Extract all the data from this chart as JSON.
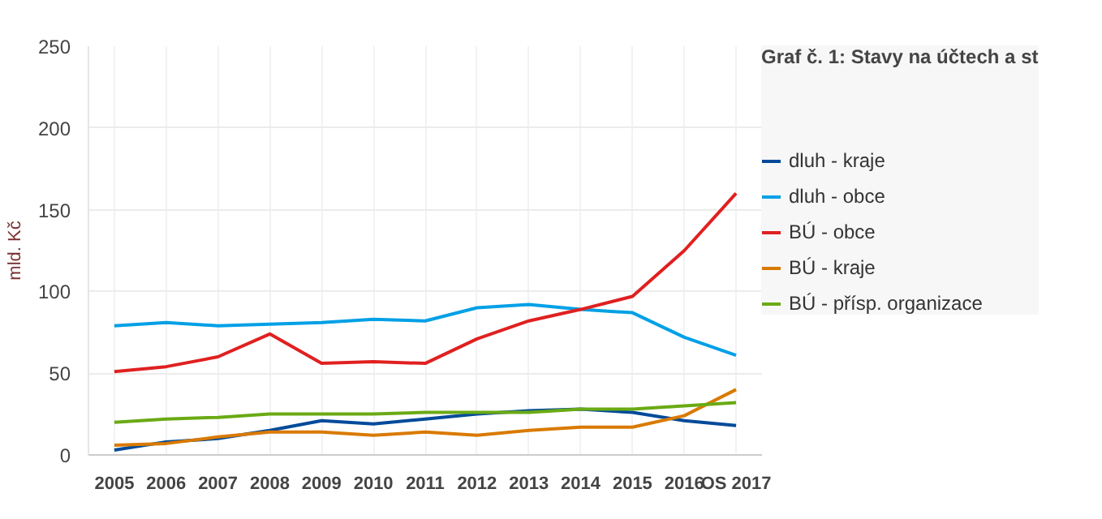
{
  "chart_data": {
    "type": "line",
    "title": "Graf č. 1: Stavy na účtech a st",
    "ylabel": "mld. Kč",
    "categories": [
      "2005",
      "2006",
      "2007",
      "2008",
      "2009",
      "2010",
      "2011",
      "2012",
      "2013",
      "2014",
      "2015",
      "2016",
      "OS 2017"
    ],
    "series": [
      {
        "name": "dluh - kraje",
        "color": "#004a9a",
        "values": [
          3,
          8,
          10,
          15,
          21,
          19,
          22,
          25,
          27,
          28,
          26,
          21,
          18
        ]
      },
      {
        "name": "dluh - obce",
        "color": "#00a0e6",
        "values": [
          79,
          81,
          79,
          80,
          81,
          83,
          82,
          90,
          92,
          89,
          87,
          72,
          61
        ]
      },
      {
        "name": "BÚ - obce",
        "color": "#e02020",
        "values": [
          51,
          54,
          60,
          74,
          56,
          57,
          56,
          71,
          82,
          89,
          97,
          125,
          160
        ]
      },
      {
        "name": "BÚ - kraje",
        "color": "#d97a00",
        "values": [
          6,
          7,
          11,
          14,
          14,
          12,
          14,
          12,
          15,
          17,
          17,
          24,
          40
        ]
      },
      {
        "name": "BÚ - přísp. organizace",
        "color": "#6aaa14",
        "values": [
          20,
          22,
          23,
          25,
          25,
          25,
          26,
          26,
          26,
          28,
          28,
          30,
          32
        ]
      }
    ],
    "ylim": [
      0,
      250
    ],
    "yticks": [
      0,
      50,
      100,
      150,
      200,
      250
    ],
    "grid": true,
    "legend": "right",
    "marker": "none",
    "line_style": "solid"
  }
}
